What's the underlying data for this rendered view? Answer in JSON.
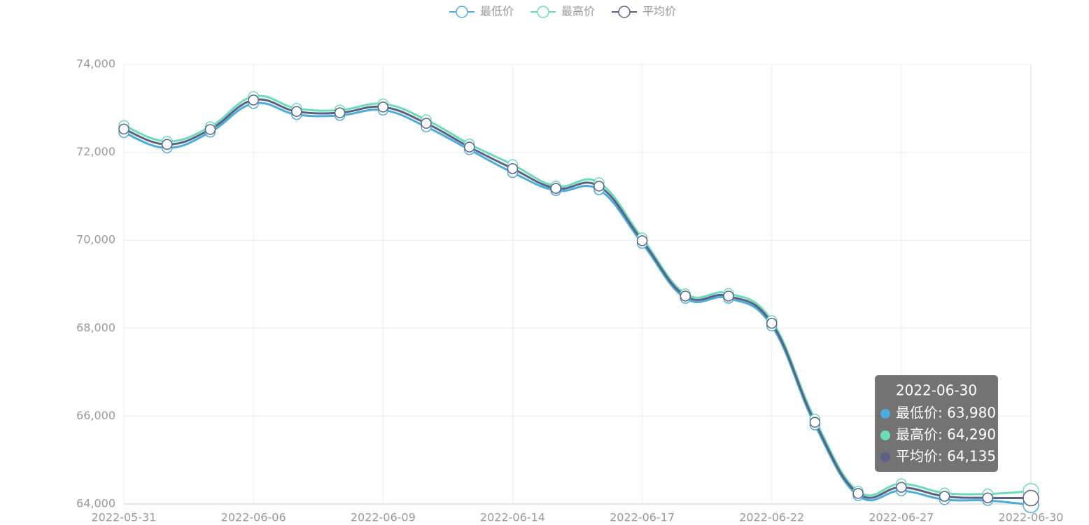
{
  "chart_data": {
    "type": "line",
    "categories": [
      "2022-05-31",
      null,
      null,
      "2022-06-06",
      null,
      null,
      "2022-06-09",
      null,
      null,
      "2022-06-14",
      null,
      null,
      "2022-06-17",
      null,
      null,
      "2022-06-22",
      null,
      null,
      "2022-06-27",
      null,
      null,
      "2022-06-30"
    ],
    "series": [
      {
        "name": "最低价",
        "color": "#4badde",
        "values": [
          72450,
          72100,
          72460,
          73110,
          72860,
          72840,
          72960,
          72580,
          72060,
          71540,
          71130,
          71150,
          69930,
          68680,
          68680,
          68050,
          65800,
          64190,
          64300,
          64100,
          64080,
          63980
        ]
      },
      {
        "name": "最高价",
        "color": "#6bdcba",
        "values": [
          72610,
          72250,
          72580,
          73270,
          73000,
          72960,
          73100,
          72740,
          72190,
          71720,
          71230,
          71310,
          70050,
          68780,
          68790,
          68170,
          65930,
          64290,
          64460,
          64250,
          64230,
          64290
        ]
      },
      {
        "name": "平均价",
        "color": "#5b6183",
        "values": [
          72530,
          72180,
          72520,
          73190,
          72930,
          72900,
          73030,
          72660,
          72120,
          71630,
          71180,
          71230,
          69990,
          68730,
          68730,
          68110,
          65860,
          64240,
          64380,
          64175,
          64140,
          64135
        ]
      }
    ],
    "ylim": [
      64000,
      74000
    ],
    "yticks": [
      {
        "value": 64000,
        "label": "64,000"
      },
      {
        "value": 66000,
        "label": "66,000"
      },
      {
        "value": 68000,
        "label": "68,000"
      },
      {
        "value": 70000,
        "label": "70,000"
      },
      {
        "value": 72000,
        "label": "72,000"
      },
      {
        "value": 74000,
        "label": "74,000"
      }
    ],
    "grid": true,
    "tooltip": {
      "title": "2022-06-30",
      "rows": [
        "最低价: 63,980",
        "最高价: 64,290",
        "平均价: 64,135"
      ]
    }
  }
}
